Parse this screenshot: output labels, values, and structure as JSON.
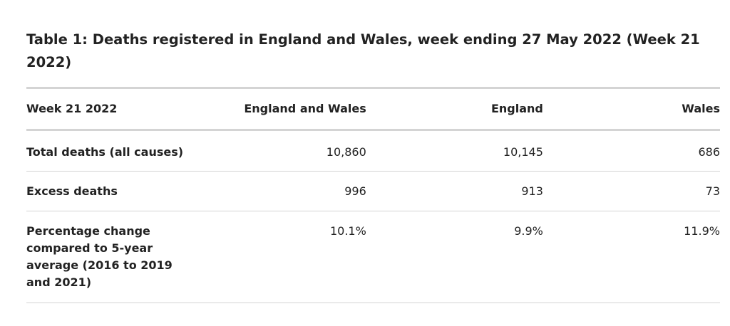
{
  "table": {
    "caption": "Table 1: Deaths registered in England and Wales, week ending 27 May 2022 (Week 21 2022)",
    "headers": [
      "Week 21 2022",
      "England and Wales",
      "England",
      "Wales"
    ],
    "rows": [
      {
        "label": "Total deaths (all causes)",
        "values": [
          "10,860",
          "10,145",
          "686"
        ]
      },
      {
        "label": "Excess deaths",
        "values": [
          "996",
          "913",
          "73"
        ]
      },
      {
        "label": "Percentage change compared to 5-year average (2016 to 2019 and 2021)",
        "values": [
          "10.1%",
          "9.9%",
          "11.9%"
        ]
      }
    ]
  }
}
